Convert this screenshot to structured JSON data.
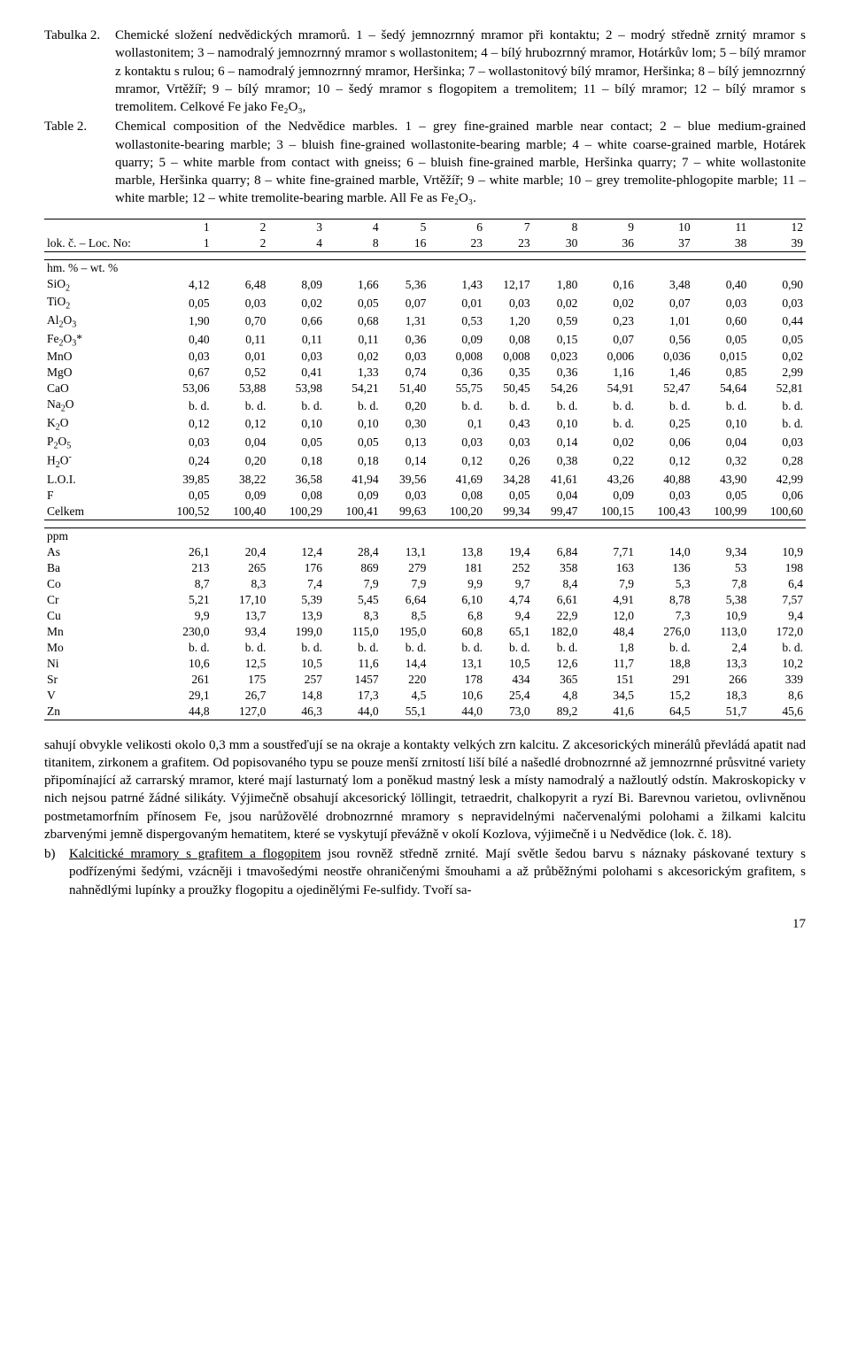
{
  "caption": {
    "cz_label": "Tabulka 2.",
    "cz_text": "Chemické složení nedvědických mramorů.\n1 – šedý jemnozrnný mramor při kontaktu; 2 – modrý středně zrnitý mramor s wollastonitem; 3 – namodralý jemnozrnný mramor s wollastonitem; 4 – bílý hrubozrnný mramor, Hotárkův lom; 5 – bílý mramor z kontaktu s rulou; 6 – namodralý jemnozrnný mramor, Heršinka; 7 – wollastonitový bílý mramor, Heršinka; 8 – bílý jemnozrnný mramor, Vrtěžíř; 9 – bílý mramor; 10 – šedý mramor s flogopitem a tremolitem; 11 – bílý mramor; 12 – bílý mramor s tremolitem. Celkové Fe jako Fe₂O₃,",
    "en_label": "Table 2.",
    "en_text": "Chemical composition of the Nedvědice marbles.\n1 – grey fine-grained marble near contact; 2 – blue medium-grained wollastonite-bearing marble; 3 – bluish fine-grained wollastonite-bearing marble; 4 – white coarse-grained marble, Hotárek quarry; 5 – white marble from contact with gneiss; 6 – bluish fine-grained marble, Heršinka quarry; 7 – white wollastonite marble, Heršinka quarry; 8 – white fine-grained marble, Vrtěžíř; 9 – white marble; 10 – grey tremolite-phlogopite marble; 11 – white marble; 12 – white tremolite-bearing marble. All Fe as Fe₂O₃."
  },
  "table": {
    "col_nums": [
      "1",
      "2",
      "3",
      "4",
      "5",
      "6",
      "7",
      "8",
      "9",
      "10",
      "11",
      "12"
    ],
    "loc_label": "lok. č. – Loc. No:",
    "loc_nums": [
      "1",
      "2",
      "4",
      "8",
      "16",
      "23",
      "23",
      "30",
      "36",
      "37",
      "38",
      "39"
    ],
    "wt_label": "hm. % – wt. %",
    "oxides": [
      {
        "name": "SiO₂",
        "v": [
          "4,12",
          "6,48",
          "8,09",
          "1,66",
          "5,36",
          "1,43",
          "12,17",
          "1,80",
          "0,16",
          "3,48",
          "0,40",
          "0,90"
        ]
      },
      {
        "name": "TiO₂",
        "v": [
          "0,05",
          "0,03",
          "0,02",
          "0,05",
          "0,07",
          "0,01",
          "0,03",
          "0,02",
          "0,02",
          "0,07",
          "0,03",
          "0,03"
        ]
      },
      {
        "name": "Al₂O₃",
        "v": [
          "1,90",
          "0,70",
          "0,66",
          "0,68",
          "1,31",
          "0,53",
          "1,20",
          "0,59",
          "0,23",
          "1,01",
          "0,60",
          "0,44"
        ]
      },
      {
        "name": "Fe₂O₃*",
        "v": [
          "0,40",
          "0,11",
          "0,11",
          "0,11",
          "0,36",
          "0,09",
          "0,08",
          "0,15",
          "0,07",
          "0,56",
          "0,05",
          "0,05"
        ]
      },
      {
        "name": "MnO",
        "v": [
          "0,03",
          "0,01",
          "0,03",
          "0,02",
          "0,03",
          "0,008",
          "0,008",
          "0,023",
          "0,006",
          "0,036",
          "0,015",
          "0,02"
        ]
      },
      {
        "name": "MgO",
        "v": [
          "0,67",
          "0,52",
          "0,41",
          "1,33",
          "0,74",
          "0,36",
          "0,35",
          "0,36",
          "1,16",
          "1,46",
          "0,85",
          "2,99"
        ]
      },
      {
        "name": "CaO",
        "v": [
          "53,06",
          "53,88",
          "53,98",
          "54,21",
          "51,40",
          "55,75",
          "50,45",
          "54,26",
          "54,91",
          "52,47",
          "54,64",
          "52,81"
        ]
      },
      {
        "name": "Na₂O",
        "v": [
          "b. d.",
          "b. d.",
          "b. d.",
          "b. d.",
          "0,20",
          "b. d.",
          "b. d.",
          "b. d.",
          "b. d.",
          "b. d.",
          "b. d.",
          "b. d."
        ]
      },
      {
        "name": "K₂O",
        "v": [
          "0,12",
          "0,12",
          "0,10",
          "0,10",
          "0,30",
          "0,1",
          "0,43",
          "0,10",
          "b. d.",
          "0,25",
          "0,10",
          "b. d."
        ]
      },
      {
        "name": "P₂O₅",
        "v": [
          "0,03",
          "0,04",
          "0,05",
          "0,05",
          "0,13",
          "0,03",
          "0,03",
          "0,14",
          "0,02",
          "0,06",
          "0,04",
          "0,03"
        ]
      },
      {
        "name": "H₂O⁻",
        "v": [
          "0,24",
          "0,20",
          "0,18",
          "0,18",
          "0,14",
          "0,12",
          "0,26",
          "0,38",
          "0,22",
          "0,12",
          "0,32",
          "0,28"
        ]
      },
      {
        "name": "L.O.I.",
        "v": [
          "39,85",
          "38,22",
          "36,58",
          "41,94",
          "39,56",
          "41,69",
          "34,28",
          "41,61",
          "43,26",
          "40,88",
          "43,90",
          "42,99"
        ]
      },
      {
        "name": "F",
        "v": [
          "0,05",
          "0,09",
          "0,08",
          "0,09",
          "0,03",
          "0,08",
          "0,05",
          "0,04",
          "0,09",
          "0,03",
          "0,05",
          "0,06"
        ]
      },
      {
        "name": "Celkem",
        "v": [
          "100,52",
          "100,40",
          "100,29",
          "100,41",
          "99,63",
          "100,20",
          "99,34",
          "99,47",
          "100,15",
          "100,43",
          "100,99",
          "100,60"
        ]
      }
    ],
    "ppm_label": "ppm",
    "traces": [
      {
        "name": "As",
        "v": [
          "26,1",
          "20,4",
          "12,4",
          "28,4",
          "13,1",
          "13,8",
          "19,4",
          "6,84",
          "7,71",
          "14,0",
          "9,34",
          "10,9"
        ]
      },
      {
        "name": "Ba",
        "v": [
          "213",
          "265",
          "176",
          "869",
          "279",
          "181",
          "252",
          "358",
          "163",
          "136",
          "53",
          "198"
        ]
      },
      {
        "name": "Co",
        "v": [
          "8,7",
          "8,3",
          "7,4",
          "7,9",
          "7,9",
          "9,9",
          "9,7",
          "8,4",
          "7,9",
          "5,3",
          "7,8",
          "6,4"
        ]
      },
      {
        "name": "Cr",
        "v": [
          "5,21",
          "17,10",
          "5,39",
          "5,45",
          "6,64",
          "6,10",
          "4,74",
          "6,61",
          "4,91",
          "8,78",
          "5,38",
          "7,57"
        ]
      },
      {
        "name": "Cu",
        "v": [
          "9,9",
          "13,7",
          "13,9",
          "8,3",
          "8,5",
          "6,8",
          "9,4",
          "22,9",
          "12,0",
          "7,3",
          "10,9",
          "9,4"
        ]
      },
      {
        "name": "Mn",
        "v": [
          "230,0",
          "93,4",
          "199,0",
          "115,0",
          "195,0",
          "60,8",
          "65,1",
          "182,0",
          "48,4",
          "276,0",
          "113,0",
          "172,0"
        ]
      },
      {
        "name": "Mo",
        "v": [
          "b. d.",
          "b. d.",
          "b. d.",
          "b. d.",
          "b. d.",
          "b. d.",
          "b. d.",
          "b. d.",
          "1,8",
          "b. d.",
          "2,4",
          "b. d."
        ]
      },
      {
        "name": "Ni",
        "v": [
          "10,6",
          "12,5",
          "10,5",
          "11,6",
          "14,4",
          "13,1",
          "10,5",
          "12,6",
          "11,7",
          "18,8",
          "13,3",
          "10,2"
        ]
      },
      {
        "name": "Sr",
        "v": [
          "261",
          "175",
          "257",
          "1457",
          "220",
          "178",
          "434",
          "365",
          "151",
          "291",
          "266",
          "339"
        ]
      },
      {
        "name": "V",
        "v": [
          "29,1",
          "26,7",
          "14,8",
          "17,3",
          "4,5",
          "10,6",
          "25,4",
          "4,8",
          "34,5",
          "15,2",
          "18,3",
          "8,6"
        ]
      },
      {
        "name": "Zn",
        "v": [
          "44,8",
          "127,0",
          "46,3",
          "44,0",
          "55,1",
          "44,0",
          "73,0",
          "89,2",
          "41,6",
          "64,5",
          "51,7",
          "45,6"
        ]
      }
    ]
  },
  "body": {
    "para1": "sahují obvykle velikosti okolo 0,3 mm a soustřeďují se na okraje a kontakty velkých zrn kalcitu. Z akcesorických minerálů převládá apatit nad titanitem, zirkonem a grafitem. Od popisovaného typu se pouze menší zrnitostí liší bílé a našedlé drobnozrnné až jemnozrnné průsvitné variety připomínající až carrarský mramor, které mají lasturnatý lom a poněkud mastný lesk a místy namodralý a nažloutlý odstín. Makroskopicky v nich nejsou patrné žádné silikáty. Výjimečně obsahují akcesorický löllingit, tetraedrit, chalkopyrit a ryzí Bi. Barevnou varietou, ovlivněnou postmetamorfním přínosem Fe, jsou narůžovělé drobnozrnné mramory s nepravidelnými načervenalými polohami a žilkami kalcitu zbarvenými jemně dispergovaným hematitem, které se vyskytují převážně v okolí Kozlova, výjimečně i u Nedvědice (lok. č. 18).",
    "item_b_label": "b)",
    "item_b_text": "Kalcitické mramory s grafitem a flogopitem jsou rovněž středně zrnité. Mají světle šedou barvu s náznaky páskované textury s podřízenými šedými, vzácněji i tmavošedými neostře ohraničenými šmouhami a až průběžnými polohami s akcesorickým grafitem, s nahnědlými lupínky a proužky flogopitu a ojedinělými Fe-sulfidy. Tvoří sa-"
  },
  "pagenum": "17"
}
